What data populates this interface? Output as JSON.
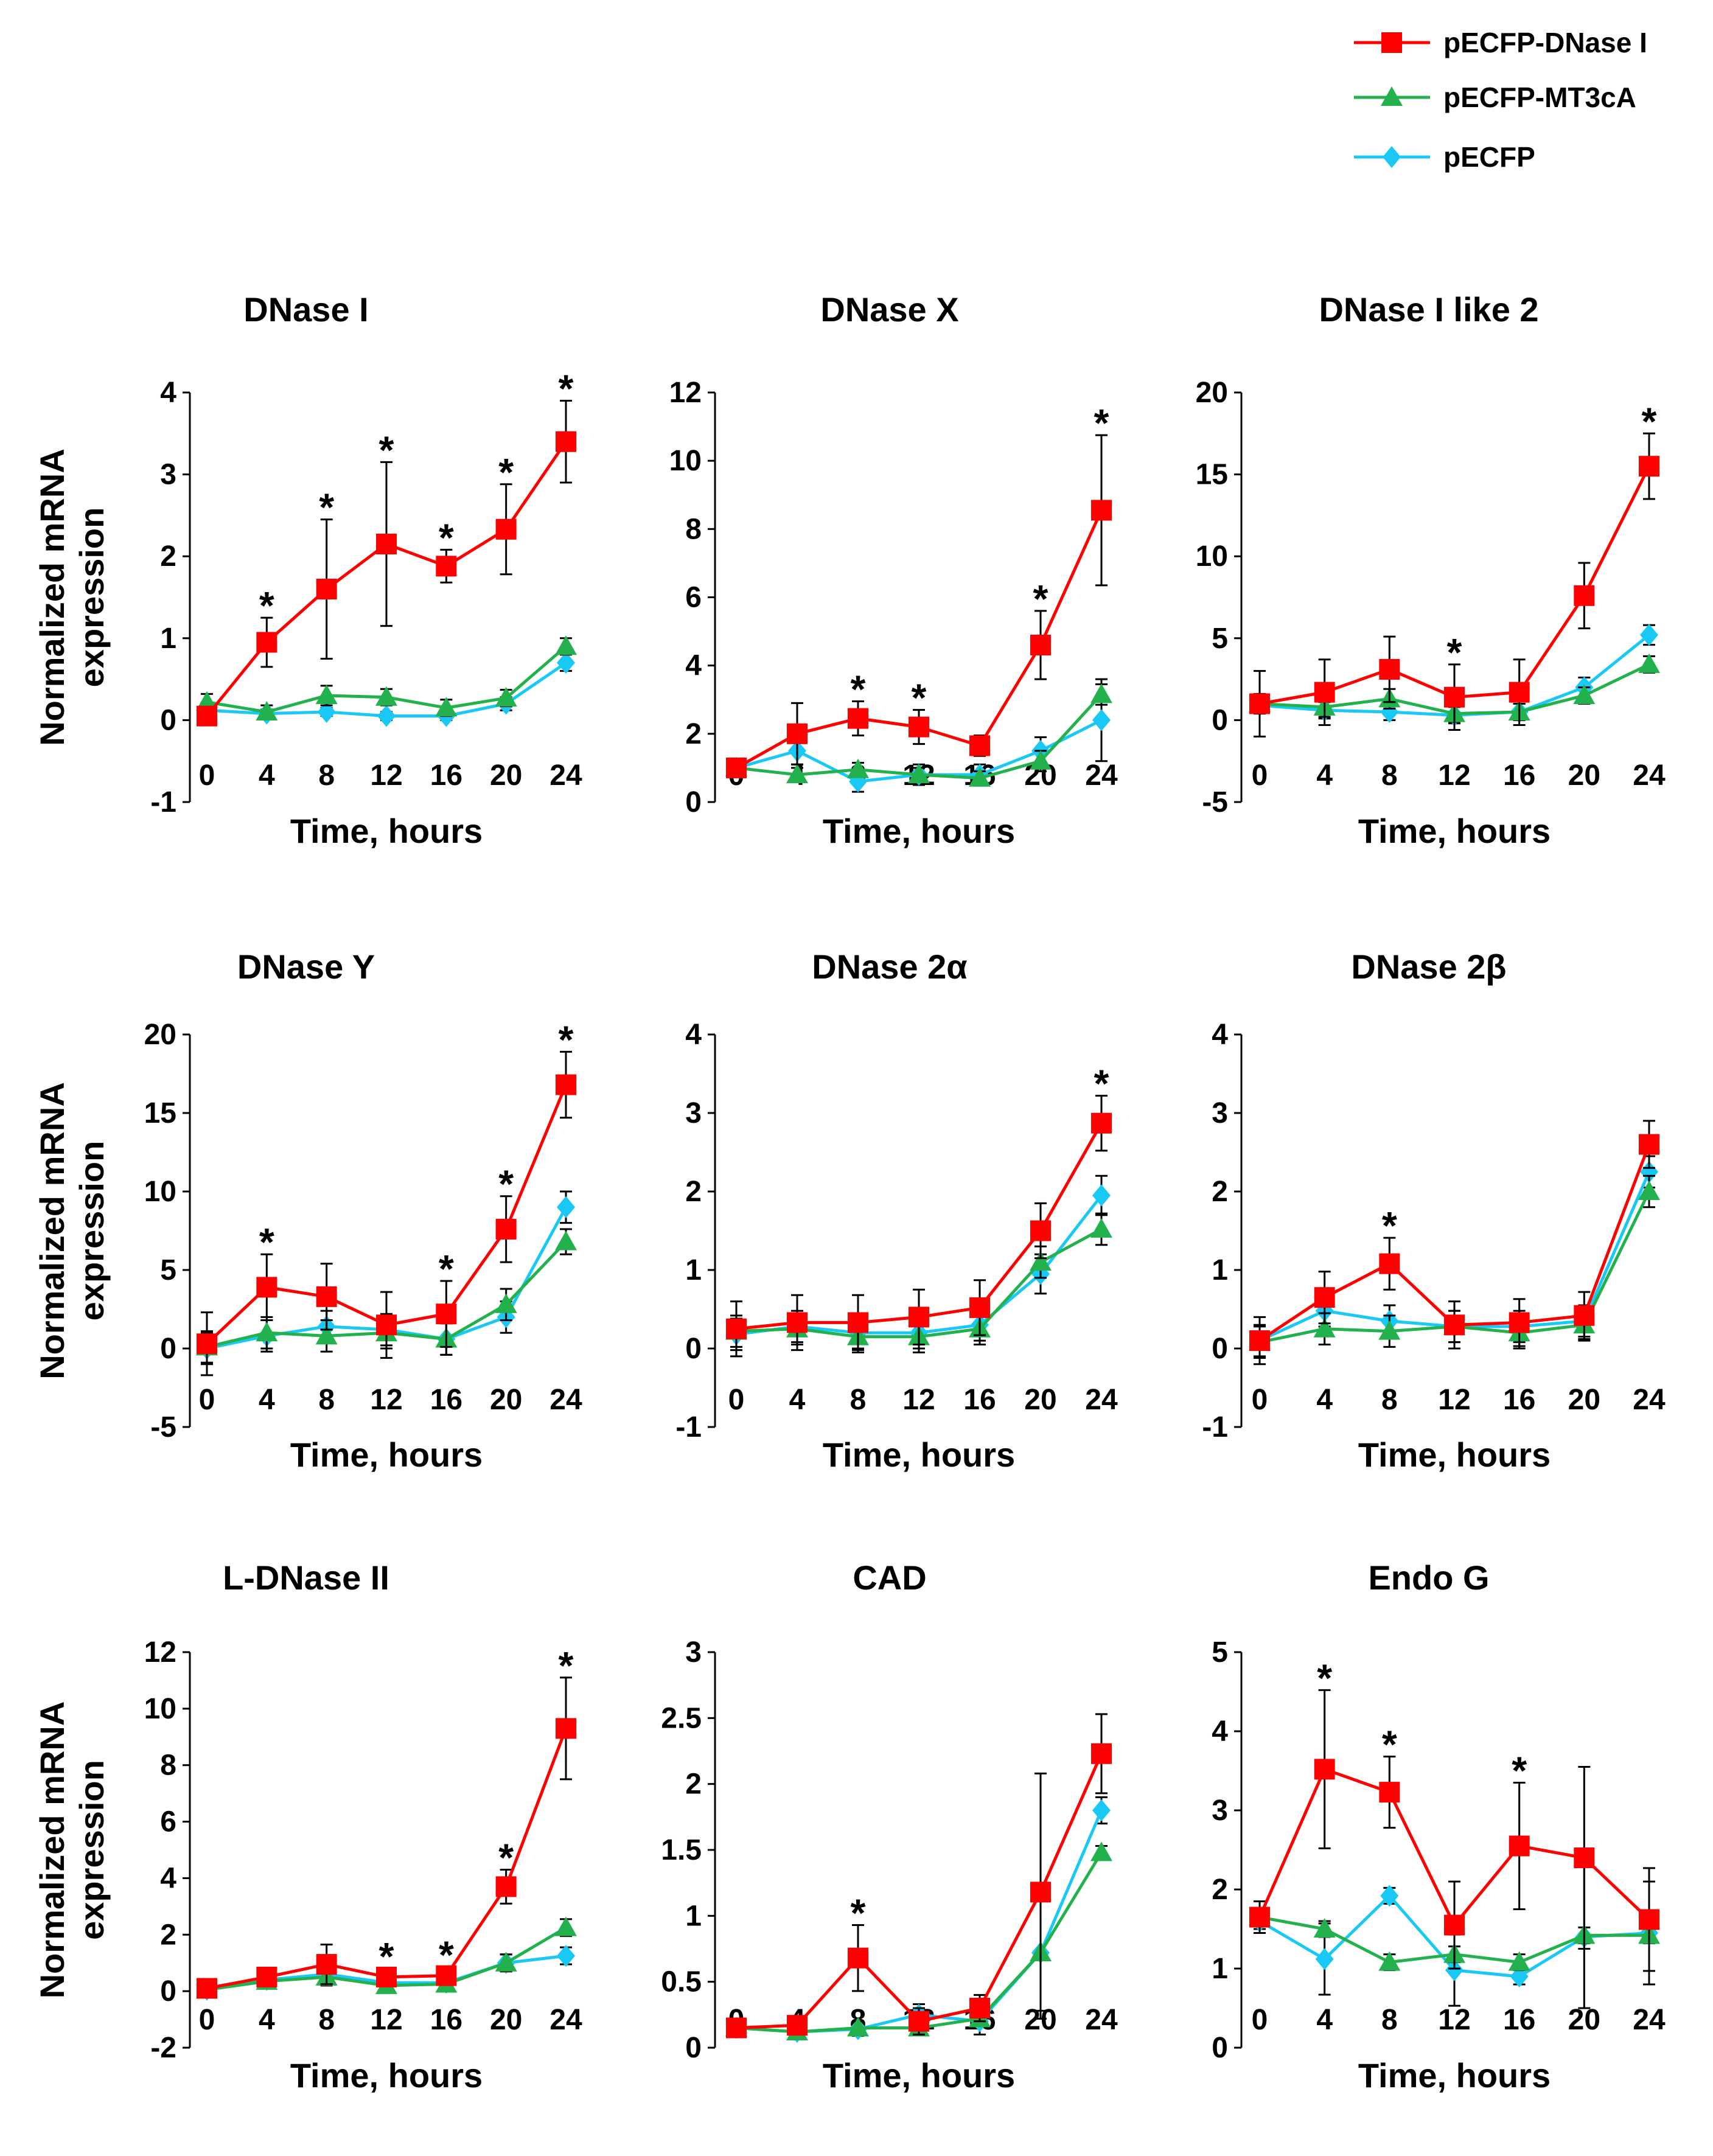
{
  "legend": [
    {
      "name": "pECFP-DNase I",
      "color": "#ff0000",
      "marker": "square"
    },
    {
      "name": "pECFP-MT3cA",
      "color": "#22b14c",
      "marker": "triangle"
    },
    {
      "name": "pECFP",
      "color": "#19c8f5",
      "marker": "diamond"
    }
  ],
  "chart_data": [
    {
      "type": "line",
      "title": "DNase I",
      "xlabel": "Time, hours",
      "ylabel": "Normalized mRNA expression",
      "x": [
        0,
        4,
        8,
        12,
        16,
        20,
        24
      ],
      "ylim": [
        -1,
        4
      ],
      "yticks": [
        -1,
        0,
        1,
        2,
        3,
        4
      ],
      "series": [
        {
          "name": "pECFP-DNase I",
          "values": [
            0.05,
            0.95,
            1.6,
            2.15,
            1.88,
            2.33,
            3.4
          ],
          "errors": [
            0.1,
            0.3,
            0.85,
            1.0,
            0.2,
            0.55,
            0.5
          ]
        },
        {
          "name": "pECFP-MT3cA",
          "values": [
            0.22,
            0.1,
            0.3,
            0.28,
            0.15,
            0.27,
            0.9
          ],
          "errors": [
            0.1,
            0.08,
            0.12,
            0.1,
            0.1,
            0.1,
            0.1
          ]
        },
        {
          "name": "pECFP",
          "values": [
            0.12,
            0.08,
            0.1,
            0.05,
            0.05,
            0.2,
            0.7
          ],
          "errors": [
            0.05,
            0.05,
            0.05,
            0.05,
            0.05,
            0.08,
            0.1
          ]
        }
      ],
      "stars": [
        4,
        8,
        12,
        16,
        20,
        24
      ],
      "star_label": "*"
    },
    {
      "type": "line",
      "title": "DNase X",
      "xlabel": "Time, hours",
      "ylabel": "",
      "x": [
        0,
        4,
        8,
        12,
        16,
        20,
        24
      ],
      "ylim": [
        0,
        12
      ],
      "yticks": [
        0,
        2,
        4,
        6,
        8,
        10,
        12
      ],
      "series": [
        {
          "name": "pECFP-DNase I",
          "values": [
            1.0,
            2.0,
            2.45,
            2.2,
            1.65,
            4.6,
            8.55
          ],
          "errors": [
            0.2,
            0.9,
            0.5,
            0.5,
            0.3,
            1.0,
            2.2
          ]
        },
        {
          "name": "pECFP-MT3cA",
          "values": [
            1.0,
            0.8,
            0.95,
            0.8,
            0.7,
            1.2,
            3.15
          ],
          "errors": [
            0.1,
            0.2,
            0.2,
            0.2,
            0.2,
            0.3,
            0.3
          ]
        },
        {
          "name": "pECFP",
          "values": [
            1.0,
            1.5,
            0.6,
            0.8,
            0.8,
            1.5,
            2.4
          ],
          "errors": [
            0.1,
            0.4,
            0.3,
            0.3,
            0.3,
            0.4,
            1.2
          ]
        }
      ],
      "stars": [
        8,
        12,
        20,
        24
      ],
      "star_label": "*"
    },
    {
      "type": "line",
      "title": "DNase I like 2",
      "xlabel": "Time, hours",
      "ylabel": "",
      "x": [
        0,
        4,
        8,
        12,
        16,
        20,
        24
      ],
      "ylim": [
        -5,
        20
      ],
      "yticks": [
        -5,
        0,
        5,
        10,
        15,
        20
      ],
      "series": [
        {
          "name": "pECFP-DNase I",
          "values": [
            1.0,
            1.7,
            3.1,
            1.4,
            1.7,
            7.6,
            15.5
          ],
          "errors": [
            2.0,
            2.0,
            2.0,
            2.0,
            2.0,
            2.0,
            2.0
          ]
        },
        {
          "name": "pECFP-MT3cA",
          "values": [
            1.0,
            0.8,
            1.3,
            0.4,
            0.5,
            1.5,
            3.4
          ],
          "errors": [
            0.6,
            0.6,
            0.6,
            0.5,
            0.5,
            0.5,
            0.5
          ]
        },
        {
          "name": "pECFP",
          "values": [
            0.9,
            0.6,
            0.5,
            0.3,
            0.5,
            2.0,
            5.2
          ],
          "errors": [
            0.5,
            0.5,
            0.5,
            0.5,
            0.5,
            0.6,
            0.6
          ]
        }
      ],
      "stars": [
        12,
        24
      ],
      "star_label": "*"
    },
    {
      "type": "line",
      "title": "DNase Y",
      "xlabel": "Time, hours",
      "ylabel": "Normalized mRNA expression",
      "x": [
        0,
        4,
        8,
        12,
        16,
        20,
        24
      ],
      "ylim": [
        -5,
        20
      ],
      "yticks": [
        -5,
        0,
        5,
        10,
        15,
        20
      ],
      "series": [
        {
          "name": "pECFP-DNase I",
          "values": [
            0.3,
            3.9,
            3.3,
            1.5,
            2.2,
            7.6,
            16.8
          ],
          "errors": [
            2.0,
            2.1,
            2.1,
            2.1,
            2.1,
            2.1,
            2.1
          ]
        },
        {
          "name": "pECFP-MT3cA",
          "values": [
            0.1,
            1.0,
            0.8,
            1.0,
            0.6,
            2.8,
            6.8
          ],
          "errors": [
            1.0,
            1.0,
            1.0,
            1.0,
            1.0,
            1.0,
            0.8
          ]
        },
        {
          "name": "pECFP",
          "values": [
            0.0,
            0.8,
            1.4,
            1.2,
            0.6,
            2.0,
            9.0
          ],
          "errors": [
            1.0,
            1.0,
            1.0,
            1.0,
            1.0,
            1.0,
            1.0
          ]
        }
      ],
      "stars": [
        4,
        16,
        20,
        24
      ],
      "star_label": "*"
    },
    {
      "type": "line",
      "title": "DNase 2α",
      "xlabel": "Time, hours",
      "ylabel": "",
      "x": [
        0,
        4,
        8,
        12,
        16,
        20,
        24
      ],
      "ylim": [
        -1,
        4
      ],
      "yticks": [
        -1,
        0,
        1,
        2,
        3,
        4
      ],
      "series": [
        {
          "name": "pECFP-DNase I",
          "values": [
            0.25,
            0.33,
            0.33,
            0.4,
            0.52,
            1.5,
            2.87
          ],
          "errors": [
            0.35,
            0.35,
            0.35,
            0.35,
            0.35,
            0.35,
            0.35
          ]
        },
        {
          "name": "pECFP-MT3cA",
          "values": [
            0.22,
            0.25,
            0.15,
            0.15,
            0.25,
            1.1,
            1.52
          ],
          "errors": [
            0.2,
            0.2,
            0.2,
            0.2,
            0.2,
            0.2,
            0.2
          ]
        },
        {
          "name": "pECFP",
          "values": [
            0.18,
            0.28,
            0.2,
            0.2,
            0.3,
            0.95,
            1.95
          ],
          "errors": [
            0.2,
            0.2,
            0.2,
            0.2,
            0.2,
            0.25,
            0.25
          ]
        }
      ],
      "stars": [
        24
      ],
      "star_label": "*"
    },
    {
      "type": "line",
      "title": "DNase 2β",
      "xlabel": "Time, hours",
      "ylabel": "",
      "x": [
        0,
        4,
        8,
        12,
        16,
        20,
        24
      ],
      "ylim": [
        -1,
        4
      ],
      "yticks": [
        -1,
        0,
        1,
        2,
        3,
        4
      ],
      "series": [
        {
          "name": "pECFP-DNase I",
          "values": [
            0.1,
            0.65,
            1.08,
            0.3,
            0.33,
            0.42,
            2.6
          ],
          "errors": [
            0.3,
            0.33,
            0.33,
            0.3,
            0.3,
            0.3,
            0.3
          ]
        },
        {
          "name": "pECFP-MT3cA",
          "values": [
            0.08,
            0.25,
            0.22,
            0.28,
            0.2,
            0.3,
            2.0
          ],
          "errors": [
            0.2,
            0.2,
            0.2,
            0.2,
            0.2,
            0.2,
            0.2
          ]
        },
        {
          "name": "pECFP",
          "values": [
            0.1,
            0.48,
            0.35,
            0.28,
            0.28,
            0.35,
            2.25
          ],
          "errors": [
            0.2,
            0.2,
            0.2,
            0.2,
            0.2,
            0.2,
            0.2
          ]
        }
      ],
      "stars": [
        8
      ],
      "star_label": "*"
    },
    {
      "type": "line",
      "title": "L-DNase II",
      "xlabel": "Time, hours",
      "ylabel": "Normalized mRNA expression",
      "x": [
        0,
        4,
        8,
        12,
        16,
        20,
        24
      ],
      "ylim": [
        -2,
        12
      ],
      "yticks": [
        -2,
        0,
        2,
        4,
        6,
        8,
        10,
        12
      ],
      "series": [
        {
          "name": "pECFP-DNase I",
          "values": [
            0.1,
            0.5,
            0.95,
            0.5,
            0.55,
            3.7,
            9.3
          ],
          "errors": [
            0.2,
            0.2,
            0.7,
            0.3,
            0.3,
            0.6,
            1.8
          ]
        },
        {
          "name": "pECFP-MT3cA",
          "values": [
            0.05,
            0.35,
            0.5,
            0.2,
            0.25,
            1.0,
            2.25
          ],
          "errors": [
            0.1,
            0.2,
            0.3,
            0.2,
            0.2,
            0.3,
            0.3
          ]
        },
        {
          "name": "pECFP",
          "values": [
            0.05,
            0.4,
            0.6,
            0.3,
            0.3,
            1.0,
            1.25
          ],
          "errors": [
            0.1,
            0.2,
            0.3,
            0.2,
            0.2,
            0.3,
            0.3
          ]
        }
      ],
      "stars": [
        12,
        16,
        20,
        24
      ],
      "star_label": "*"
    },
    {
      "type": "line",
      "title": "CAD",
      "xlabel": "Time, hours",
      "ylabel": "",
      "x": [
        0,
        4,
        8,
        12,
        16,
        20,
        24
      ],
      "ylim": [
        0,
        3
      ],
      "yticks": [
        0,
        0.5,
        1,
        1.5,
        2,
        2.5,
        3
      ],
      "series": [
        {
          "name": "pECFP-DNase I",
          "values": [
            0.15,
            0.17,
            0.68,
            0.2,
            0.3,
            1.18,
            2.23
          ],
          "errors": [
            0.05,
            0.05,
            0.25,
            0.1,
            0.1,
            0.9,
            0.3
          ]
        },
        {
          "name": "pECFP-MT3cA",
          "values": [
            0.15,
            0.12,
            0.15,
            0.15,
            0.22,
            0.72,
            1.48
          ],
          "errors": [
            0.05,
            0.05,
            0.05,
            0.05,
            0.05,
            0.5,
            0.05
          ]
        },
        {
          "name": "pECFP",
          "values": [
            0.15,
            0.12,
            0.14,
            0.25,
            0.2,
            0.72,
            1.8
          ],
          "errors": [
            0.05,
            0.05,
            0.05,
            0.08,
            0.1,
            0.5,
            0.1
          ]
        }
      ],
      "stars": [
        8
      ],
      "star_label": "*"
    },
    {
      "type": "line",
      "title": "Endo G",
      "xlabel": "Time, hours",
      "ylabel": "",
      "x": [
        0,
        4,
        8,
        12,
        16,
        20,
        24
      ],
      "ylim": [
        0,
        5
      ],
      "yticks": [
        0,
        1,
        2,
        3,
        4,
        5
      ],
      "series": [
        {
          "name": "pECFP-DNase I",
          "values": [
            1.65,
            3.52,
            3.23,
            1.55,
            2.55,
            2.4,
            1.62
          ],
          "errors": [
            0.2,
            1.0,
            0.45,
            0.55,
            0.8,
            1.15,
            0.65
          ]
        },
        {
          "name": "pECFP-MT3cA",
          "values": [
            1.65,
            1.5,
            1.08,
            1.18,
            1.08,
            1.42,
            1.42
          ],
          "errors": [
            0.1,
            0.1,
            0.1,
            0.1,
            0.1,
            0.1,
            0.1
          ]
        },
        {
          "name": "pECFP",
          "values": [
            1.6,
            1.12,
            1.92,
            0.98,
            0.9,
            1.4,
            1.45
          ],
          "errors": [
            0.1,
            0.45,
            0.1,
            0.45,
            0.1,
            0.9,
            0.65
          ]
        }
      ],
      "stars": [
        4,
        8,
        16
      ],
      "star_label": "*"
    }
  ]
}
